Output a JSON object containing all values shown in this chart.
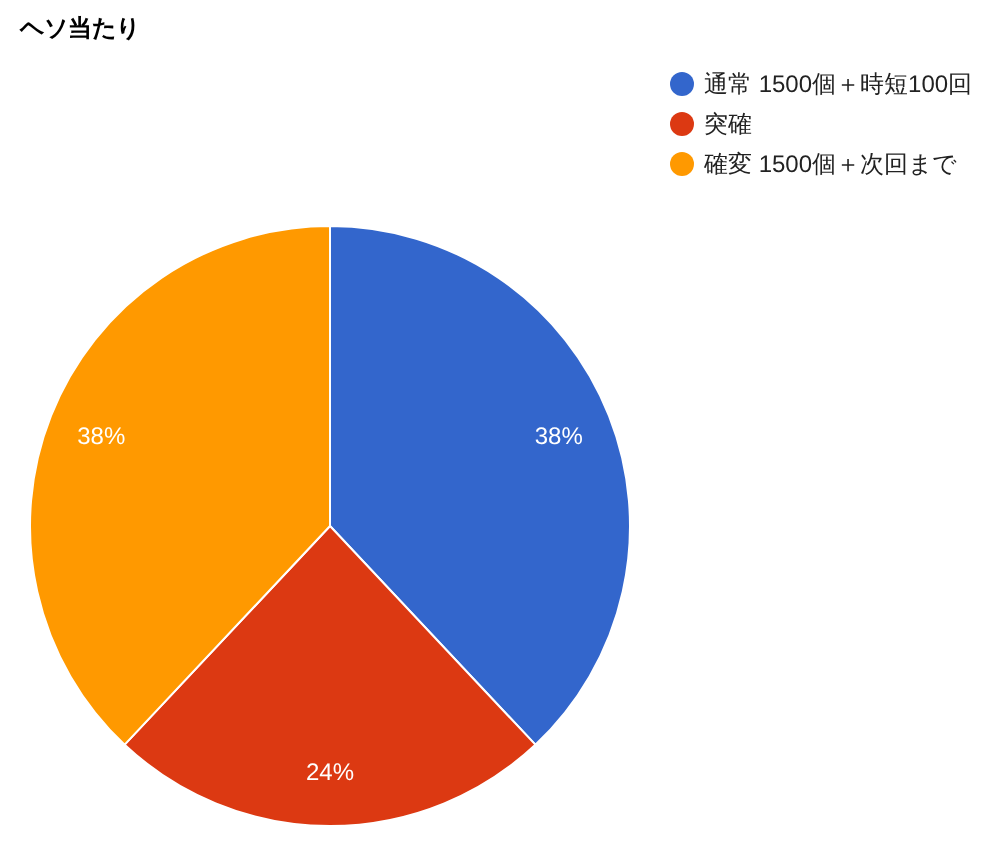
{
  "chart_data": {
    "type": "pie",
    "title": "ヘソ当たり",
    "categories": [
      "通常 1500個＋時短100回",
      "突確",
      "確変 1500個＋次回まで"
    ],
    "values": [
      38,
      24,
      38
    ],
    "colors": [
      "#3366cc",
      "#dc3912",
      "#ff9900"
    ],
    "value_labels": [
      "38%",
      "24%",
      "38%"
    ],
    "legend": "top right"
  }
}
